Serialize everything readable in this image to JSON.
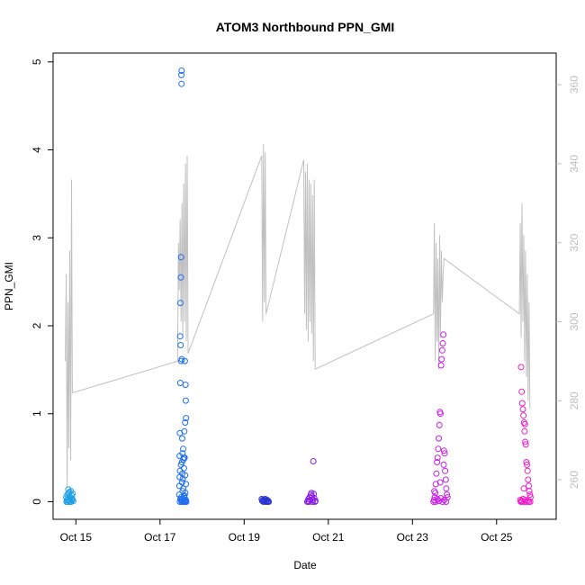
{
  "chart_data": {
    "type": "scatter",
    "title": "ATOM3 Northbound PPN_GMI",
    "xlabel": "Date",
    "ylabel": "PPN_GMI",
    "xlim": [
      "2015-10-14T11:00",
      "2015-10-26T10:00"
    ],
    "ylim": [
      -0.2,
      5.1
    ],
    "y_ticks": [
      0,
      1,
      2,
      3,
      4,
      5
    ],
    "x_ticks": [
      {
        "date": "2015-10-15",
        "label": "Oct 15"
      },
      {
        "date": "2015-10-17",
        "label": "Oct 17"
      },
      {
        "date": "2015-10-19",
        "label": "Oct 19"
      },
      {
        "date": "2015-10-21",
        "label": "Oct 21"
      },
      {
        "date": "2015-10-23",
        "label": "Oct 23"
      },
      {
        "date": "2015-10-25",
        "label": "Oct 25"
      }
    ],
    "y2_ticks": [
      260,
      280,
      300,
      320,
      340,
      360
    ],
    "y2lim": [
      250,
      368
    ],
    "grid": false,
    "series": [
      {
        "color": "#1ea0e6",
        "marker": "open-circle",
        "points": [
          [
            "2015-10-14T18:30",
            0.05
          ],
          [
            "2015-10-14T18:50",
            0.02
          ],
          [
            "2015-10-14T19:10",
            0.08
          ],
          [
            "2015-10-14T19:30",
            0.03
          ],
          [
            "2015-10-14T19:50",
            0.1
          ],
          [
            "2015-10-14T20:10",
            0.06
          ],
          [
            "2015-10-14T20:30",
            0.0
          ],
          [
            "2015-10-14T20:50",
            0.04
          ],
          [
            "2015-10-14T21:10",
            0.12
          ],
          [
            "2015-10-14T21:30",
            0.07
          ],
          [
            "2015-10-14T21:50",
            0.02
          ],
          [
            "2015-10-14T22:10",
            0.09
          ],
          [
            "2015-10-14T22:30",
            0.01
          ],
          [
            "2015-10-14T18:40",
            0.0
          ],
          [
            "2015-10-14T19:20",
            0.0
          ],
          [
            "2015-10-14T20:00",
            0.01
          ],
          [
            "2015-10-14T20:40",
            0.05
          ],
          [
            "2015-10-14T21:20",
            0.0
          ],
          [
            "2015-10-14T22:00",
            0.03
          ],
          [
            "2015-10-14T19:40",
            0.14
          ],
          [
            "2015-10-14T20:20",
            0.11
          ],
          [
            "2015-10-14T21:40",
            0.04
          ]
        ]
      },
      {
        "color": "#1e6ef0",
        "marker": "open-circle",
        "points": [
          [
            "2015-10-17T12:10",
            4.85
          ],
          [
            "2015-10-17T12:20",
            4.9
          ],
          [
            "2015-10-17T12:15",
            4.75
          ],
          [
            "2015-10-17T12:00",
            2.78
          ],
          [
            "2015-10-17T11:50",
            2.55
          ],
          [
            "2015-10-17T11:40",
            2.26
          ],
          [
            "2015-10-17T11:30",
            1.88
          ],
          [
            "2015-10-17T11:45",
            1.78
          ],
          [
            "2015-10-17T12:05",
            1.6
          ],
          [
            "2015-10-17T12:25",
            1.62
          ],
          [
            "2015-10-17T14:10",
            1.6
          ],
          [
            "2015-10-17T11:35",
            1.35
          ],
          [
            "2015-10-17T14:30",
            1.33
          ],
          [
            "2015-10-17T14:40",
            1.15
          ],
          [
            "2015-10-17T14:50",
            0.95
          ],
          [
            "2015-10-17T14:20",
            0.9
          ],
          [
            "2015-10-17T13:50",
            0.8
          ],
          [
            "2015-10-17T11:20",
            0.78
          ],
          [
            "2015-10-17T12:40",
            0.72
          ],
          [
            "2015-10-17T13:10",
            0.6
          ],
          [
            "2015-10-17T12:50",
            0.55
          ],
          [
            "2015-10-17T11:10",
            0.52
          ],
          [
            "2015-10-17T13:30",
            0.5
          ],
          [
            "2015-10-17T14:00",
            0.5
          ],
          [
            "2015-10-17T13:20",
            0.48
          ],
          [
            "2015-10-17T12:30",
            0.45
          ],
          [
            "2015-10-17T11:55",
            0.42
          ],
          [
            "2015-10-17T13:40",
            0.38
          ],
          [
            "2015-10-17T11:25",
            0.35
          ],
          [
            "2015-10-17T12:45",
            0.32
          ],
          [
            "2015-10-17T14:15",
            0.3
          ],
          [
            "2015-10-17T11:15",
            0.28
          ],
          [
            "2015-10-17T13:00",
            0.26
          ],
          [
            "2015-10-17T12:35",
            0.22
          ],
          [
            "2015-10-17T14:45",
            0.2
          ],
          [
            "2015-10-17T11:05",
            0.18
          ],
          [
            "2015-10-17T13:15",
            0.15
          ],
          [
            "2015-10-17T12:55",
            0.12
          ],
          [
            "2015-10-17T14:25",
            0.1
          ],
          [
            "2015-10-17T11:00",
            0.08
          ],
          [
            "2015-10-17T13:45",
            0.06
          ],
          [
            "2015-10-17T14:05",
            0.04
          ],
          [
            "2015-10-17T11:40",
            0.03
          ],
          [
            "2015-10-17T12:10",
            0.02
          ],
          [
            "2015-10-17T12:40",
            0.01
          ],
          [
            "2015-10-17T13:10",
            0.0
          ],
          [
            "2015-10-17T13:40",
            0.0
          ],
          [
            "2015-10-17T14:10",
            0.01
          ],
          [
            "2015-10-17T14:40",
            0.02
          ],
          [
            "2015-10-17T15:00",
            0.0
          ],
          [
            "2015-10-17T11:20",
            0.0
          ],
          [
            "2015-10-17T12:20",
            0.0
          ],
          [
            "2015-10-17T13:20",
            0.03
          ],
          [
            "2015-10-17T14:20",
            0.0
          ],
          [
            "2015-10-17T13:55",
            0.07
          ],
          [
            "2015-10-17T12:00",
            0.05
          ]
        ]
      },
      {
        "color": "#2a32d2",
        "marker": "open-circle",
        "points": [
          [
            "2015-10-19T10:00",
            0.03
          ],
          [
            "2015-10-19T10:20",
            0.01
          ],
          [
            "2015-10-19T10:40",
            0.02
          ],
          [
            "2015-10-19T11:00",
            0.0
          ],
          [
            "2015-10-19T11:20",
            0.02
          ],
          [
            "2015-10-19T11:40",
            0.01
          ],
          [
            "2015-10-19T12:00",
            0.03
          ],
          [
            "2015-10-19T12:20",
            0.0
          ],
          [
            "2015-10-19T12:40",
            0.01
          ],
          [
            "2015-10-19T13:00",
            0.02
          ],
          [
            "2015-10-19T13:20",
            0.0
          ],
          [
            "2015-10-19T13:40",
            0.01
          ],
          [
            "2015-10-19T14:00",
            0.0
          ]
        ]
      },
      {
        "color": "#8a1ee6",
        "marker": "open-circle",
        "points": [
          [
            "2015-10-20T12:00",
            0.0
          ],
          [
            "2015-10-20T12:20",
            0.01
          ],
          [
            "2015-10-20T12:40",
            0.03
          ],
          [
            "2015-10-20T13:00",
            0.0
          ],
          [
            "2015-10-20T13:20",
            0.05
          ],
          [
            "2015-10-20T13:40",
            0.02
          ],
          [
            "2015-10-20T14:00",
            0.08
          ],
          [
            "2015-10-20T14:20",
            0.1
          ],
          [
            "2015-10-20T14:40",
            0.06
          ],
          [
            "2015-10-20T15:00",
            0.0
          ],
          [
            "2015-10-20T15:20",
            0.02
          ],
          [
            "2015-10-20T15:40",
            0.09
          ],
          [
            "2015-10-20T16:00",
            0.04
          ],
          [
            "2015-10-20T16:20",
            0.0
          ],
          [
            "2015-10-20T16:40",
            0.01
          ],
          [
            "2015-10-20T15:30",
            0.46
          ]
        ]
      },
      {
        "color": "#c81ee6",
        "marker": "open-circle",
        "points": [
          [
            "2015-10-23T12:00",
            0.0
          ],
          [
            "2015-10-23T12:20",
            0.02
          ],
          [
            "2015-10-23T12:40",
            0.05
          ],
          [
            "2015-10-23T13:00",
            0.1
          ],
          [
            "2015-10-23T13:20",
            0.2
          ],
          [
            "2015-10-23T13:40",
            0.32
          ],
          [
            "2015-10-23T14:00",
            0.45
          ],
          [
            "2015-10-23T14:20",
            0.5
          ],
          [
            "2015-10-23T14:40",
            0.6
          ],
          [
            "2015-10-23T15:00",
            0.72
          ],
          [
            "2015-10-23T15:20",
            0.87
          ],
          [
            "2015-10-23T15:40",
            1.02
          ],
          [
            "2015-10-23T16:00",
            1.0
          ],
          [
            "2015-10-23T16:20",
            1.55
          ],
          [
            "2015-10-23T16:40",
            1.62
          ],
          [
            "2015-10-23T17:00",
            1.72
          ],
          [
            "2015-10-23T17:20",
            1.8
          ],
          [
            "2015-10-23T17:40",
            1.9
          ],
          [
            "2015-10-23T18:00",
            0.58
          ],
          [
            "2015-10-23T18:20",
            0.55
          ],
          [
            "2015-10-23T18:40",
            0.35
          ],
          [
            "2015-10-23T19:00",
            0.25
          ],
          [
            "2015-10-23T19:20",
            0.15
          ],
          [
            "2015-10-23T19:40",
            0.08
          ],
          [
            "2015-10-23T20:00",
            0.05
          ],
          [
            "2015-10-23T13:10",
            0.0
          ],
          [
            "2015-10-23T14:10",
            0.03
          ],
          [
            "2015-10-23T15:10",
            0.01
          ],
          [
            "2015-10-23T16:10",
            0.04
          ],
          [
            "2015-10-23T17:10",
            0.0
          ],
          [
            "2015-10-23T18:10",
            0.02
          ],
          [
            "2015-10-23T19:10",
            0.0
          ],
          [
            "2015-10-23T12:30",
            0.12
          ],
          [
            "2015-10-23T15:50",
            0.22
          ],
          [
            "2015-10-23T17:50",
            0.42
          ]
        ]
      },
      {
        "color": "#f01ec8",
        "marker": "open-circle",
        "points": [
          [
            "2015-10-25T14:00",
            1.53
          ],
          [
            "2015-10-25T14:20",
            1.25
          ],
          [
            "2015-10-25T14:40",
            1.12
          ],
          [
            "2015-10-25T15:00",
            1.05
          ],
          [
            "2015-10-25T15:20",
            0.98
          ],
          [
            "2015-10-25T15:40",
            0.9
          ],
          [
            "2015-10-25T16:00",
            0.8
          ],
          [
            "2015-10-25T16:20",
            0.68
          ],
          [
            "2015-10-25T16:40",
            0.65
          ],
          [
            "2015-10-25T17:00",
            0.45
          ],
          [
            "2015-10-25T17:20",
            0.42
          ],
          [
            "2015-10-25T17:40",
            0.35
          ],
          [
            "2015-10-25T18:00",
            0.25
          ],
          [
            "2015-10-25T18:20",
            0.18
          ],
          [
            "2015-10-25T18:40",
            0.12
          ],
          [
            "2015-10-25T19:00",
            0.08
          ],
          [
            "2015-10-25T19:20",
            0.05
          ],
          [
            "2015-10-25T13:30",
            0.02
          ],
          [
            "2015-10-25T13:50",
            0.0
          ],
          [
            "2015-10-25T14:10",
            0.01
          ],
          [
            "2015-10-25T14:30",
            0.0
          ],
          [
            "2015-10-25T15:10",
            0.03
          ],
          [
            "2015-10-25T15:50",
            0.0
          ],
          [
            "2015-10-25T16:30",
            0.02
          ],
          [
            "2015-10-25T17:10",
            0.0
          ],
          [
            "2015-10-25T17:50",
            0.01
          ],
          [
            "2015-10-25T18:30",
            0.0
          ],
          [
            "2015-10-25T19:10",
            0.0
          ],
          [
            "2015-10-25T16:10",
            0.88
          ],
          [
            "2015-10-25T15:30",
            0.15
          ]
        ]
      }
    ],
    "overlay_line": {
      "color": "#c0c0c0",
      "axis": "right",
      "points": [
        [
          "2015-10-14T18:00",
          290
        ],
        [
          "2015-10-14T18:30",
          312
        ],
        [
          "2015-10-14T19:00",
          258
        ],
        [
          "2015-10-14T19:30",
          305
        ],
        [
          "2015-10-14T20:00",
          268
        ],
        [
          "2015-10-14T20:30",
          318
        ],
        [
          "2015-10-14T21:00",
          265
        ],
        [
          "2015-10-14T21:30",
          336
        ],
        [
          "2015-10-14T22:00",
          282
        ],
        [
          "2015-10-17T10:00",
          290
        ],
        [
          "2015-10-17T10:30",
          320
        ],
        [
          "2015-10-17T11:00",
          308
        ],
        [
          "2015-10-17T11:30",
          326
        ],
        [
          "2015-10-17T12:00",
          300
        ],
        [
          "2015-10-17T12:30",
          330
        ],
        [
          "2015-10-17T13:00",
          296
        ],
        [
          "2015-10-17T13:30",
          335
        ],
        [
          "2015-10-17T14:00",
          300
        ],
        [
          "2015-10-17T14:30",
          340
        ],
        [
          "2015-10-17T15:00",
          295
        ],
        [
          "2015-10-17T15:30",
          342
        ],
        [
          "2015-10-17T16:00",
          292
        ],
        [
          "2015-10-19T10:00",
          342
        ],
        [
          "2015-10-19T10:30",
          300
        ],
        [
          "2015-10-19T11:00",
          345
        ],
        [
          "2015-10-19T11:30",
          305
        ],
        [
          "2015-10-19T12:00",
          343
        ],
        [
          "2015-10-19T12:30",
          302
        ],
        [
          "2015-10-20T10:00",
          341
        ],
        [
          "2015-10-20T10:30",
          302
        ],
        [
          "2015-10-20T11:00",
          338
        ],
        [
          "2015-10-20T11:30",
          298
        ],
        [
          "2015-10-20T12:00",
          340
        ],
        [
          "2015-10-20T12:30",
          295
        ],
        [
          "2015-10-20T13:00",
          336
        ],
        [
          "2015-10-20T13:30",
          300
        ],
        [
          "2015-10-20T14:00",
          335
        ],
        [
          "2015-10-20T14:30",
          297
        ],
        [
          "2015-10-20T15:00",
          332
        ],
        [
          "2015-10-20T15:30",
          290
        ],
        [
          "2015-10-20T16:00",
          336
        ],
        [
          "2015-10-20T16:30",
          288
        ],
        [
          "2015-10-23T12:00",
          302
        ],
        [
          "2015-10-23T12:30",
          325
        ],
        [
          "2015-10-23T13:00",
          290
        ],
        [
          "2015-10-23T13:30",
          320
        ],
        [
          "2015-10-23T14:00",
          295
        ],
        [
          "2015-10-23T14:30",
          316
        ],
        [
          "2015-10-23T15:00",
          288
        ],
        [
          "2015-10-23T15:30",
          322
        ],
        [
          "2015-10-23T16:00",
          296
        ],
        [
          "2015-10-23T16:30",
          318
        ],
        [
          "2015-10-23T17:00",
          305
        ],
        [
          "2015-10-23T17:30",
          312
        ],
        [
          "2015-10-23T18:00",
          316
        ],
        [
          "2015-10-25T13:00",
          302
        ],
        [
          "2015-10-25T13:30",
          325
        ],
        [
          "2015-10-25T14:00",
          296
        ],
        [
          "2015-10-25T14:30",
          330
        ],
        [
          "2015-10-25T15:00",
          300
        ],
        [
          "2015-10-25T15:30",
          322
        ],
        [
          "2015-10-25T16:00",
          290
        ],
        [
          "2015-10-25T16:30",
          318
        ],
        [
          "2015-10-25T17:00",
          286
        ],
        [
          "2015-10-25T17:30",
          312
        ],
        [
          "2015-10-25T18:00",
          280
        ],
        [
          "2015-10-25T18:30",
          305
        ],
        [
          "2015-10-25T19:00",
          278
        ]
      ]
    }
  }
}
